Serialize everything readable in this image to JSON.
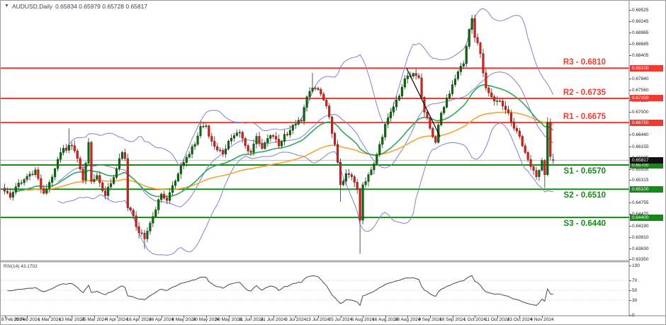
{
  "header": {
    "dropdown_icon": "▼",
    "symbol": "AUDUSD,Daily",
    "quote": "0.65834 0.65979 0.65728 0.65817"
  },
  "colors": {
    "up_candle": "#116b11",
    "up_border": "#0a4d0a",
    "down_candle": "#d9241f",
    "down_border": "#8f1410",
    "wick": "#555555",
    "resistance": "#f2392f",
    "support": "#168a16",
    "bollinger": "#8080d0",
    "ma_fast": "#2daa57",
    "ma_slow": "#ffa033",
    "price_line": "#b4b4b4",
    "price_badge_bg": "#111111",
    "rsi_line": "#4a4a4a",
    "axis_line": "#808080",
    "grid_dotted": "#cfcfcf",
    "trendline": "#000000"
  },
  "levels": [
    {
      "id": "R3",
      "label": "R3 - 0.6810",
      "price": 0.681,
      "badge": "0.68100",
      "type": "resistance"
    },
    {
      "id": "R2",
      "label": "R2 - 0.6735",
      "price": 0.6735,
      "badge": "0.67350",
      "type": "resistance"
    },
    {
      "id": "R1",
      "label": "R1 - 0.6675",
      "price": 0.6675,
      "badge": "0.66750",
      "type": "resistance"
    },
    {
      "id": "S1",
      "label": "S1 - 0.6570",
      "price": 0.657,
      "badge": "0.65700",
      "type": "support"
    },
    {
      "id": "S2",
      "label": "S2 - 0.6510",
      "price": 0.651,
      "badge": "0.65100",
      "type": "support"
    },
    {
      "id": "S3",
      "label": "S3 - 0.6440",
      "price": 0.644,
      "badge": "0.64400",
      "type": "support"
    }
  ],
  "current_price": {
    "value": "0.65817",
    "price": 0.65817
  },
  "chart_data": {
    "type": "candlestick",
    "symbol": "AUDUSD",
    "timeframe": "Daily",
    "title": "AUDUSD,Daily",
    "last_quote": {
      "open": 0.65834,
      "high": 0.65979,
      "low": 0.65728,
      "close": 0.65817
    },
    "y_axis": {
      "min": 0.6335,
      "max": 0.6956,
      "ticks": [
        "0.69525",
        "0.69245",
        "0.68965",
        "0.68685",
        "0.68405",
        "0.67840",
        "0.67560",
        "0.67280",
        "0.67000",
        "0.66440",
        "0.66155",
        "0.65875",
        "0.65595",
        "0.65315",
        "0.65035",
        "0.64755",
        "0.64475",
        "0.64190",
        "0.63910",
        "0.63630",
        "0.63350"
      ]
    },
    "x_axis": {
      "dates": [
        "8 Feb 2024",
        "20 Feb 2024",
        "1 Mar 2024",
        "13 Mar 2024",
        "25 Mar 2024",
        "4 Apr 2024",
        "16 Apr 2024",
        "26 Apr 2024",
        "8 May 2024",
        "20 May 2024",
        "30 May 2024",
        "11 Jun 2024",
        "21 Jun 2024",
        "3 Jul 2024",
        "15 Jul 2024",
        "25 Jul 2024",
        "6 Aug 2024",
        "16 Aug 2024",
        "28 Aug 2024",
        "9 Sep 2024",
        "19 Sep 2024",
        "1 Oct 2024",
        "11 Oct 2024",
        "23 Oct 2024",
        "4 Nov 2024"
      ],
      "candles_per_tick": 8
    },
    "candle_count": 197,
    "close_anchors": [
      [
        0,
        0.6505
      ],
      [
        2,
        0.649
      ],
      [
        4,
        0.6516
      ],
      [
        6,
        0.6526
      ],
      [
        8,
        0.6542
      ],
      [
        11,
        0.6558
      ],
      [
        13,
        0.6512
      ],
      [
        14,
        0.65
      ],
      [
        16,
        0.6527
      ],
      [
        18,
        0.6561
      ],
      [
        20,
        0.6601
      ],
      [
        23,
        0.6619
      ],
      [
        25,
        0.6605
      ],
      [
        27,
        0.656
      ],
      [
        28,
        0.6532
      ],
      [
        30,
        0.6626
      ],
      [
        31,
        0.6529
      ],
      [
        33,
        0.6544
      ],
      [
        35,
        0.6506
      ],
      [
        36,
        0.6494
      ],
      [
        38,
        0.6524
      ],
      [
        40,
        0.6561
      ],
      [
        42,
        0.6601
      ],
      [
        43,
        0.6586
      ],
      [
        44,
        0.6464
      ],
      [
        46,
        0.6444
      ],
      [
        48,
        0.6402
      ],
      [
        50,
        0.6387
      ],
      [
        52,
        0.6426
      ],
      [
        54,
        0.6459
      ],
      [
        56,
        0.6498
      ],
      [
        58,
        0.6482
      ],
      [
        60,
        0.6519
      ],
      [
        62,
        0.6548
      ],
      [
        64,
        0.6576
      ],
      [
        66,
        0.6597
      ],
      [
        68,
        0.6621
      ],
      [
        70,
        0.6666
      ],
      [
        72,
        0.6667
      ],
      [
        74,
        0.6629
      ],
      [
        76,
        0.6607
      ],
      [
        78,
        0.6597
      ],
      [
        80,
        0.6629
      ],
      [
        82,
        0.6643
      ],
      [
        84,
        0.6651
      ],
      [
        86,
        0.6618
      ],
      [
        88,
        0.6601
      ],
      [
        90,
        0.6641
      ],
      [
        92,
        0.6611
      ],
      [
        94,
        0.6636
      ],
      [
        96,
        0.6641
      ],
      [
        98,
        0.6617
      ],
      [
        100,
        0.6646
      ],
      [
        102,
        0.6656
      ],
      [
        104,
        0.6671
      ],
      [
        106,
        0.6679
      ],
      [
        108,
        0.6739
      ],
      [
        110,
        0.6761
      ],
      [
        112,
        0.6757
      ],
      [
        114,
        0.6731
      ],
      [
        116,
        0.6689
      ],
      [
        118,
        0.6621
      ],
      [
        120,
        0.6521
      ],
      [
        122,
        0.6549
      ],
      [
        124,
        0.6541
      ],
      [
        126,
        0.6511
      ],
      [
        127,
        0.6433
      ],
      [
        128,
        0.6521
      ],
      [
        130,
        0.6546
      ],
      [
        132,
        0.6573
      ],
      [
        134,
        0.6621
      ],
      [
        136,
        0.6671
      ],
      [
        138,
        0.6701
      ],
      [
        140,
        0.6731
      ],
      [
        142,
        0.6763
      ],
      [
        144,
        0.6791
      ],
      [
        146,
        0.6797
      ],
      [
        148,
        0.6786
      ],
      [
        150,
        0.6701
      ],
      [
        152,
        0.6661
      ],
      [
        154,
        0.6626
      ],
      [
        156,
        0.6699
      ],
      [
        158,
        0.6736
      ],
      [
        160,
        0.6769
      ],
      [
        162,
        0.6801
      ],
      [
        164,
        0.6821
      ],
      [
        166,
        0.6906
      ],
      [
        167,
        0.6933
      ],
      [
        168,
        0.6886
      ],
      [
        170,
        0.6846
      ],
      [
        172,
        0.6761
      ],
      [
        174,
        0.6739
      ],
      [
        176,
        0.6729
      ],
      [
        178,
        0.6716
      ],
      [
        180,
        0.6699
      ],
      [
        182,
        0.6661
      ],
      [
        184,
        0.6641
      ],
      [
        186,
        0.6601
      ],
      [
        188,
        0.6566
      ],
      [
        190,
        0.6541
      ],
      [
        191,
        0.6557
      ],
      [
        192,
        0.6581
      ],
      [
        193,
        0.6546
      ],
      [
        194,
        0.6676
      ],
      [
        195,
        0.6591
      ],
      [
        196,
        0.65817
      ]
    ],
    "high_overrides": {
      "23": 0.6661,
      "30": 0.6637,
      "70": 0.668,
      "110": 0.6798,
      "146": 0.6799,
      "167": 0.6942,
      "194": 0.6688
    },
    "low_overrides": {
      "48": 0.6388,
      "50": 0.6362,
      "120": 0.6479,
      "127": 0.635,
      "154": 0.6622,
      "193": 0.6513
    },
    "indicators": {
      "bollinger": {
        "period": 20,
        "deviation": 2
      },
      "ma_fast": {
        "type": "EMA",
        "period": 34
      },
      "ma_slow": {
        "type": "EMA",
        "period": 89
      },
      "rsi": {
        "period": 14,
        "value": "43.1702",
        "label": "RSI(14) 43.1702",
        "scale": [
          "100",
          "70",
          "50",
          "30",
          "0"
        ],
        "guides": [
          70,
          50,
          30
        ]
      }
    },
    "trendline": {
      "start": {
        "candle": 144,
        "price": 0.681
      },
      "end": {
        "candle": 156,
        "price": 0.664
      }
    }
  }
}
